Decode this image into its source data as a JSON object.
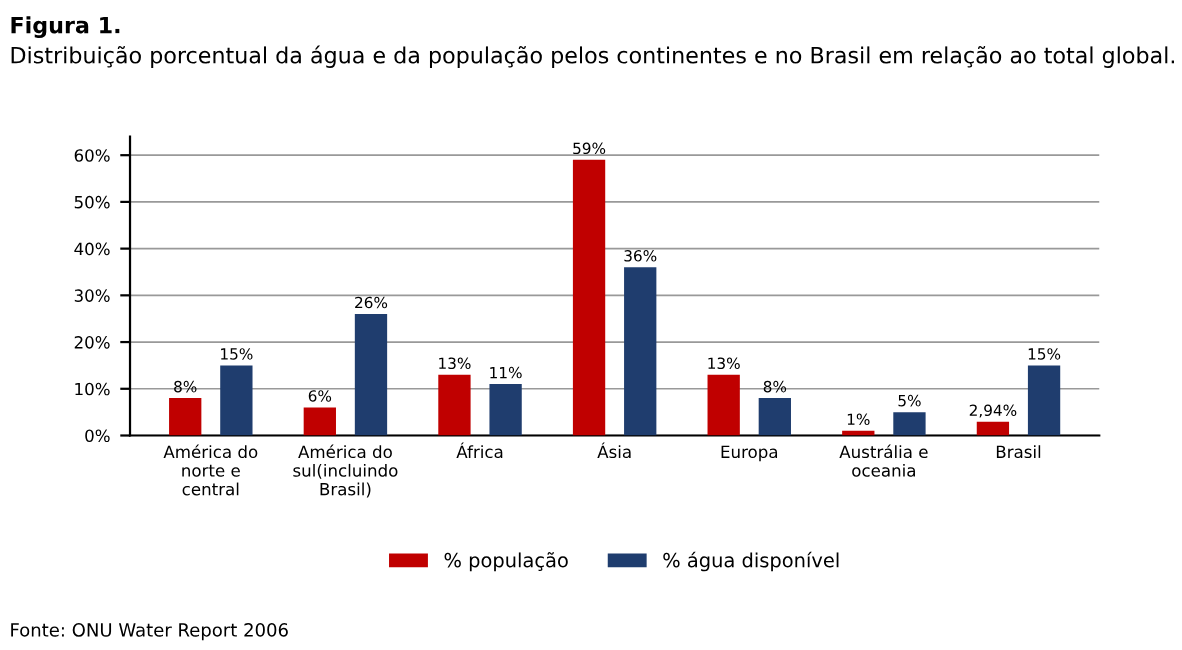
{
  "chart_data": {
    "type": "bar",
    "title": "Figura 1.",
    "subtitle": "Distribuição porcentual da água e da população pelos continentes e no Brasil em relação ao total global.",
    "categories": [
      "América do\nnorte e\ncentral",
      "América do\nsul(incluindo\nBrasil)",
      "África",
      "Ásia",
      "Europa",
      "Austrália e\noceania",
      "Brasil"
    ],
    "series": [
      {
        "name": "% população",
        "color": "#c00000",
        "values": [
          8,
          6,
          13,
          59,
          13,
          1,
          2.94
        ],
        "value_labels": [
          "8%",
          "6%",
          "13%",
          "59%",
          "13%",
          "1%",
          "2,94%"
        ]
      },
      {
        "name": "% água disponível",
        "color": "#1f3d6e",
        "values": [
          15,
          26,
          11,
          36,
          8,
          5,
          15
        ],
        "value_labels": [
          "15%",
          "26%",
          "11%",
          "36%",
          "8%",
          "5%",
          "15%"
        ]
      }
    ],
    "ylim": [
      0,
      64
    ],
    "yticks": [
      {
        "value": 0,
        "label": "0%"
      },
      {
        "value": 10,
        "label": "10%"
      },
      {
        "value": 20,
        "label": "20%"
      },
      {
        "value": 30,
        "label": "30%"
      },
      {
        "value": 40,
        "label": "40%"
      },
      {
        "value": 50,
        "label": "50%"
      },
      {
        "value": 60,
        "label": "60%"
      }
    ],
    "grid": "y",
    "legend": "bottom",
    "annotations": [
      "Fonte: ONU Water Report 2006"
    ]
  }
}
